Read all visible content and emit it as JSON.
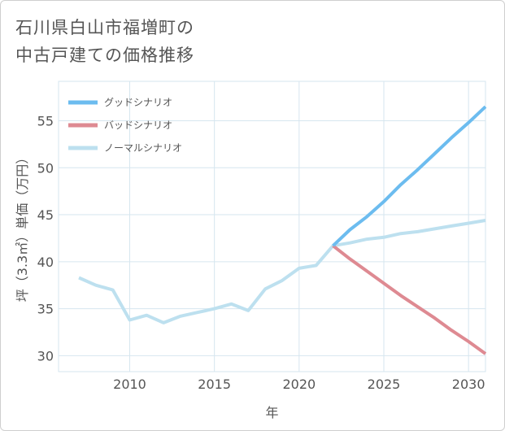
{
  "title_lines": [
    "石川県白山市福増町の",
    "中古戸建ての価格推移"
  ],
  "colors": {
    "good": "#6cbcef",
    "bad": "#de8a92",
    "normal": "#bde0ef",
    "grid": "#d6e6ef",
    "text": "#555555"
  },
  "chart_data": {
    "type": "line",
    "title": "石川県白山市福増町の中古戸建ての価格推移",
    "xlabel": "年",
    "ylabel": "坪（3.3㎡）単価（万円）",
    "xlim": [
      2005.8,
      2031
    ],
    "ylim": [
      28.3,
      59.2
    ],
    "xticks": [
      2010,
      2015,
      2020,
      2025,
      2030
    ],
    "yticks": [
      30,
      35,
      40,
      45,
      50,
      55
    ],
    "grid": true,
    "legend_position": "top-left",
    "series": [
      {
        "name": "グッドシナリオ",
        "color": "#6cbcef",
        "x": [
          2022,
          2023,
          2024,
          2025,
          2026,
          2027,
          2028,
          2029,
          2030,
          2031
        ],
        "y": [
          41.7,
          43.4,
          44.8,
          46.4,
          48.2,
          49.8,
          51.5,
          53.2,
          54.8,
          56.5
        ]
      },
      {
        "name": "バッドシナリオ",
        "color": "#de8a92",
        "x": [
          2022,
          2023,
          2024,
          2025,
          2026,
          2027,
          2028,
          2029,
          2030,
          2031
        ],
        "y": [
          41.7,
          40.3,
          39.0,
          37.7,
          36.4,
          35.2,
          34.0,
          32.7,
          31.5,
          30.2
        ]
      },
      {
        "name": "ノーマルシナリオ",
        "color": "#bde0ef",
        "x": [
          2007,
          2008,
          2009,
          2010,
          2011,
          2012,
          2013,
          2014,
          2015,
          2016,
          2017,
          2018,
          2019,
          2020,
          2021,
          2022,
          2023,
          2024,
          2025,
          2026,
          2027,
          2028,
          2029,
          2030,
          2031
        ],
        "y": [
          38.3,
          37.5,
          37.0,
          33.8,
          34.3,
          33.5,
          34.2,
          34.6,
          35.0,
          35.5,
          34.8,
          37.1,
          38.0,
          39.3,
          39.6,
          41.7,
          42.0,
          42.4,
          42.6,
          43.0,
          43.2,
          43.5,
          43.8,
          44.1,
          44.4
        ]
      }
    ]
  }
}
